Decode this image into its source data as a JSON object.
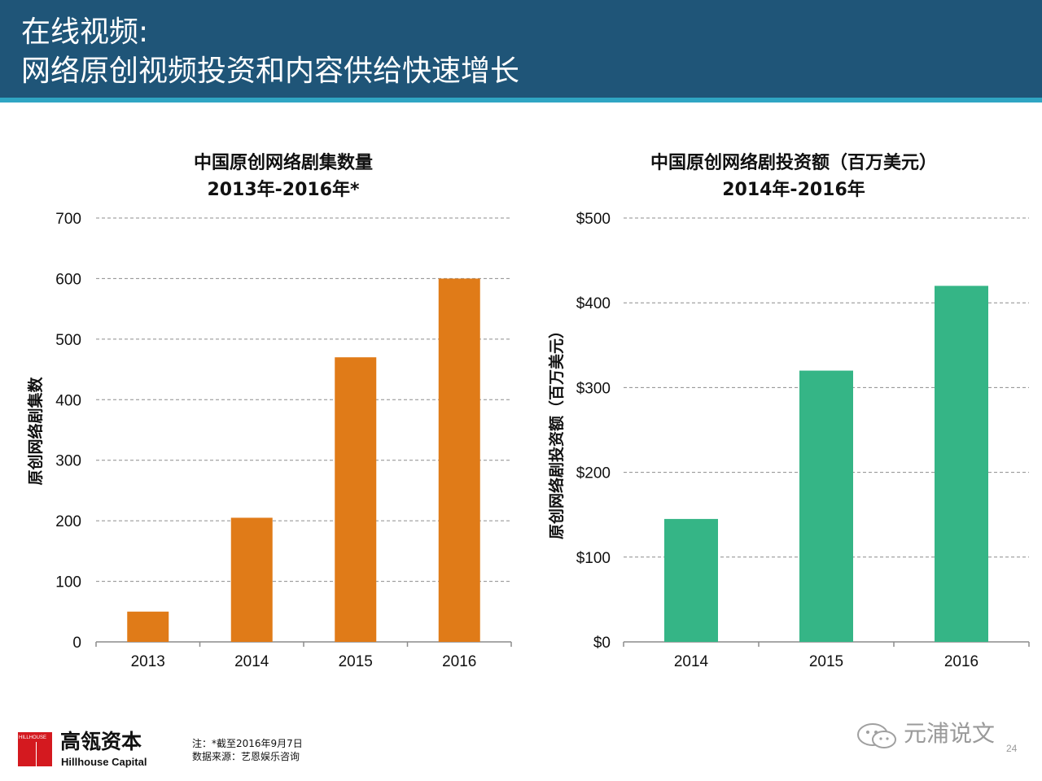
{
  "header": {
    "title_line1": "在线视频:",
    "title_line2": "网络原创视频投资和内容供给快速增长"
  },
  "chart_data": [
    {
      "type": "bar",
      "title": "中国原创网络剧集数量",
      "subtitle": "2013年-2016年*",
      "ylabel": "原创网络剧集数",
      "xlabel": "",
      "categories": [
        "2013",
        "2014",
        "2015",
        "2016"
      ],
      "values": [
        50,
        205,
        470,
        600
      ],
      "ylim": [
        0,
        700
      ],
      "yticks": [
        0,
        100,
        200,
        300,
        400,
        500,
        600,
        700
      ],
      "ytick_labels": [
        "0",
        "100",
        "200",
        "300",
        "400",
        "500",
        "600",
        "700"
      ],
      "bar_color": "#e07b18",
      "grid": true,
      "grid_style": "dashed"
    },
    {
      "type": "bar",
      "title": "中国原创网络剧投资额（百万美元）",
      "subtitle": "2014年-2016年",
      "ylabel": "原创网络剧投资额（百万美元）",
      "xlabel": "",
      "categories": [
        "2014",
        "2015",
        "2016"
      ],
      "values": [
        145,
        320,
        420
      ],
      "ylim": [
        0,
        500
      ],
      "yticks": [
        0,
        100,
        200,
        300,
        400,
        500
      ],
      "ytick_labels": [
        "$0",
        "$100",
        "$200",
        "$300",
        "$400",
        "$500"
      ],
      "bar_color": "#35b586",
      "grid": true,
      "grid_style": "dashed"
    }
  ],
  "footer": {
    "logo_mini": "HILLHOUSE",
    "brand_cn": "高瓴资本",
    "brand_en": "Hillhouse Capital",
    "note_1": "注：*截至2016年9月7日",
    "note_2": "数据来源：艺恩娱乐咨询",
    "watermark_icon": "wechat-icon",
    "watermark_text": "元浦说文",
    "page_number": "24"
  }
}
